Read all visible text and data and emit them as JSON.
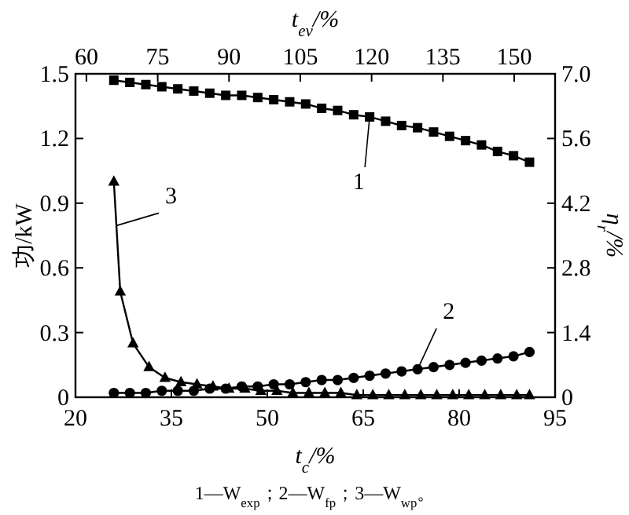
{
  "chart_data": {
    "type": "line",
    "xlabel": "t$_{c}$/%",
    "ylabel": "功/kW",
    "y2label": "η$_{r}$/%",
    "x2label": "t$_{ev}$/%",
    "xlim": [
      20,
      95
    ],
    "xticks": [
      20,
      35,
      50,
      65,
      80,
      95
    ],
    "x2lim": [
      57.7,
      158.6
    ],
    "x2ticks": [
      60,
      75,
      90,
      105,
      120,
      135,
      150
    ],
    "ylim": [
      0,
      1.5
    ],
    "yticks": [
      0,
      0.3,
      0.6,
      0.9,
      1.2,
      1.5
    ],
    "y2lim": [
      0,
      7
    ],
    "y2ticks": [
      0,
      1.4,
      2.8,
      4.2,
      5.6,
      {
        "value": 7,
        "label": "7.0"
      }
    ],
    "grid": false,
    "line_style": "solid",
    "annotations": [
      "1—W$_{exp}$；2—W$_{fp}$；3—W$_{wp}$。"
    ],
    "series": [
      {
        "name": "1",
        "color": "#000000",
        "marker": "square",
        "x": [
          26,
          28.5,
          31,
          33.5,
          36,
          38.5,
          41,
          43.5,
          46,
          48.5,
          51,
          53.5,
          56,
          58.5,
          61,
          63.5,
          66,
          68.5,
          71,
          73.5,
          76,
          78.5,
          81,
          83.5,
          86,
          88.5,
          91
        ],
        "values": [
          1.47,
          1.46,
          1.45,
          1.44,
          1.43,
          1.42,
          1.41,
          1.4,
          1.4,
          1.39,
          1.38,
          1.37,
          1.36,
          1.34,
          1.33,
          1.31,
          1.3,
          1.28,
          1.26,
          1.25,
          1.23,
          1.21,
          1.19,
          1.17,
          1.14,
          1.12,
          1.09
        ]
      },
      {
        "name": "2",
        "color": "#000000",
        "marker": "circle",
        "x": [
          26,
          28.5,
          31,
          33.5,
          36,
          38.5,
          41,
          43.5,
          46,
          48.5,
          51,
          53.5,
          56,
          58.5,
          61,
          63.5,
          66,
          68.5,
          71,
          73.5,
          76,
          78.5,
          81,
          83.5,
          86,
          88.5,
          91
        ],
        "values": [
          0.02,
          0.02,
          0.02,
          0.03,
          0.03,
          0.03,
          0.04,
          0.04,
          0.05,
          0.05,
          0.06,
          0.06,
          0.07,
          0.08,
          0.08,
          0.09,
          0.1,
          0.11,
          0.12,
          0.13,
          0.14,
          0.15,
          0.16,
          0.17,
          0.18,
          0.19,
          0.21
        ]
      },
      {
        "name": "3",
        "color": "#000000",
        "marker": "triangle",
        "x": [
          26,
          27,
          29,
          31.5,
          34,
          36.5,
          39,
          41.5,
          44,
          46.5,
          49,
          51.5,
          54,
          56.5,
          59,
          61.5,
          64,
          66.5,
          69,
          71.5,
          74,
          76.5,
          79,
          81.5,
          84,
          86.5,
          89,
          91
        ],
        "values": [
          1.0,
          0.49,
          0.25,
          0.14,
          0.09,
          0.07,
          0.06,
          0.05,
          0.04,
          0.04,
          0.03,
          0.03,
          0.02,
          0.02,
          0.02,
          0.02,
          0.01,
          0.01,
          0.01,
          0.01,
          0.01,
          0.01,
          0.01,
          0.01,
          0.01,
          0.01,
          0.01,
          0.01
        ]
      }
    ]
  }
}
